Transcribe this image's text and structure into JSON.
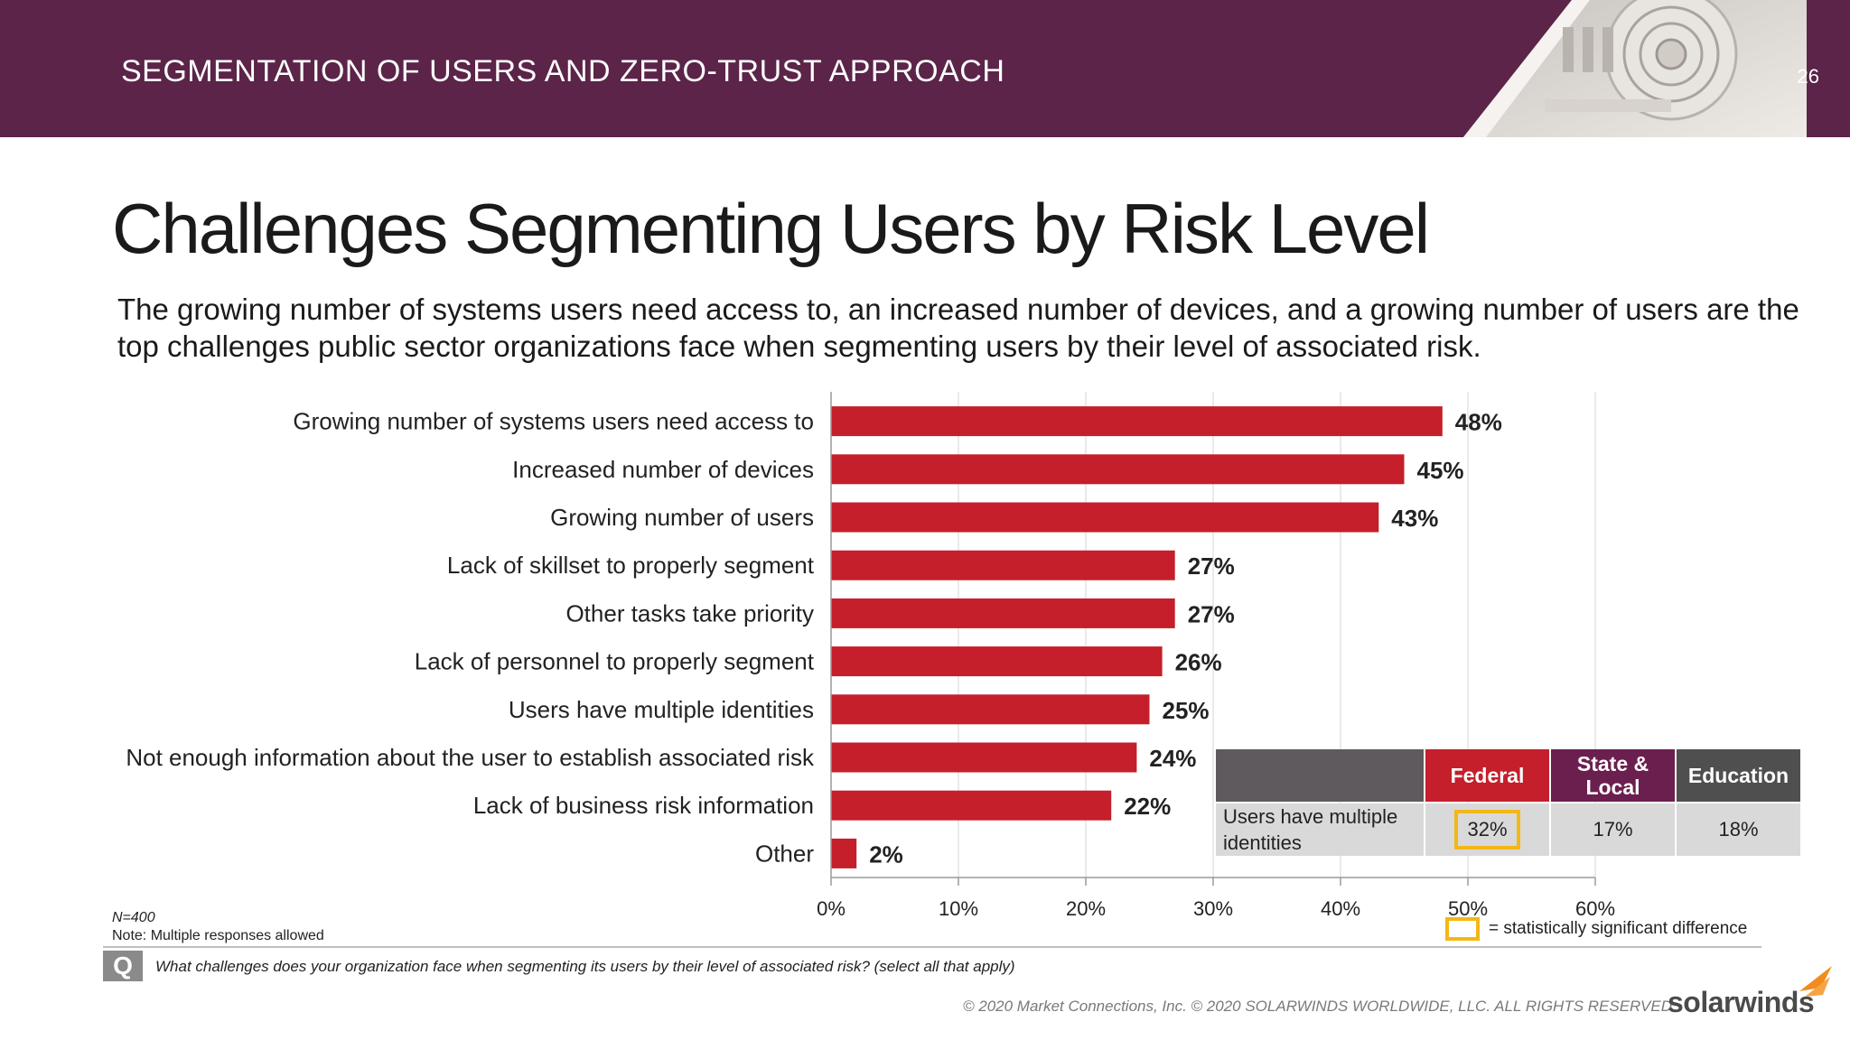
{
  "header": {
    "title": "SEGMENTATION OF USERS AND ZERO-TRUST APPROACH",
    "page_number": "26"
  },
  "slide_title": "Challenges Segmenting Users by Risk Level",
  "subtitle": "The growing number of systems users need access to, an increased number of devices, and a growing number of users are the top challenges public sector organizations face when segmenting users by their level of associated risk.",
  "chart_data": {
    "type": "bar",
    "orientation": "horizontal",
    "categories": [
      "Growing number of systems users need access to",
      "Increased number of devices",
      "Growing number of users",
      "Lack of skillset to properly segment",
      "Other tasks take priority",
      "Lack of personnel to properly segment",
      "Users have multiple identities",
      "Not enough information about the user to establish associated risk",
      "Lack of business risk information",
      "Other"
    ],
    "values": [
      48,
      45,
      43,
      27,
      27,
      26,
      25,
      24,
      22,
      2
    ],
    "value_labels": [
      "48%",
      "45%",
      "43%",
      "27%",
      "27%",
      "26%",
      "25%",
      "24%",
      "22%",
      "2%"
    ],
    "x_ticks": [
      "0%",
      "10%",
      "20%",
      "30%",
      "40%",
      "50%",
      "60%"
    ],
    "xlim": [
      0,
      60
    ],
    "grid": true,
    "bar_color": "#c41f2a"
  },
  "breakout_table": {
    "headers": [
      "Federal",
      "State & Local",
      "Education"
    ],
    "header_colors": [
      "#c41f2a",
      "#6b1f4f",
      "#4f4f4f"
    ],
    "blank_header_color": "#5f5a5e",
    "row_label": "Users have multiple identities",
    "values": [
      "32%",
      "17%",
      "18%"
    ],
    "highlighted": "Federal"
  },
  "legend": {
    "text": "= statistically significant difference",
    "color": "#f3b716"
  },
  "notes": {
    "n": "N=400",
    "note": "Note: Multiple responses allowed"
  },
  "question": {
    "badge": "Q",
    "text": "What challenges does your organization face when segmenting its users by their level of associated risk? (select all that apply)"
  },
  "footer": {
    "copyright": "© 2020 Market Connections, Inc. © 2020 SOLARWINDS WORLDWIDE, LLC. ALL RIGHTS RESERVED",
    "logo": "solarwinds",
    "logo_color": "#f28c1e"
  }
}
